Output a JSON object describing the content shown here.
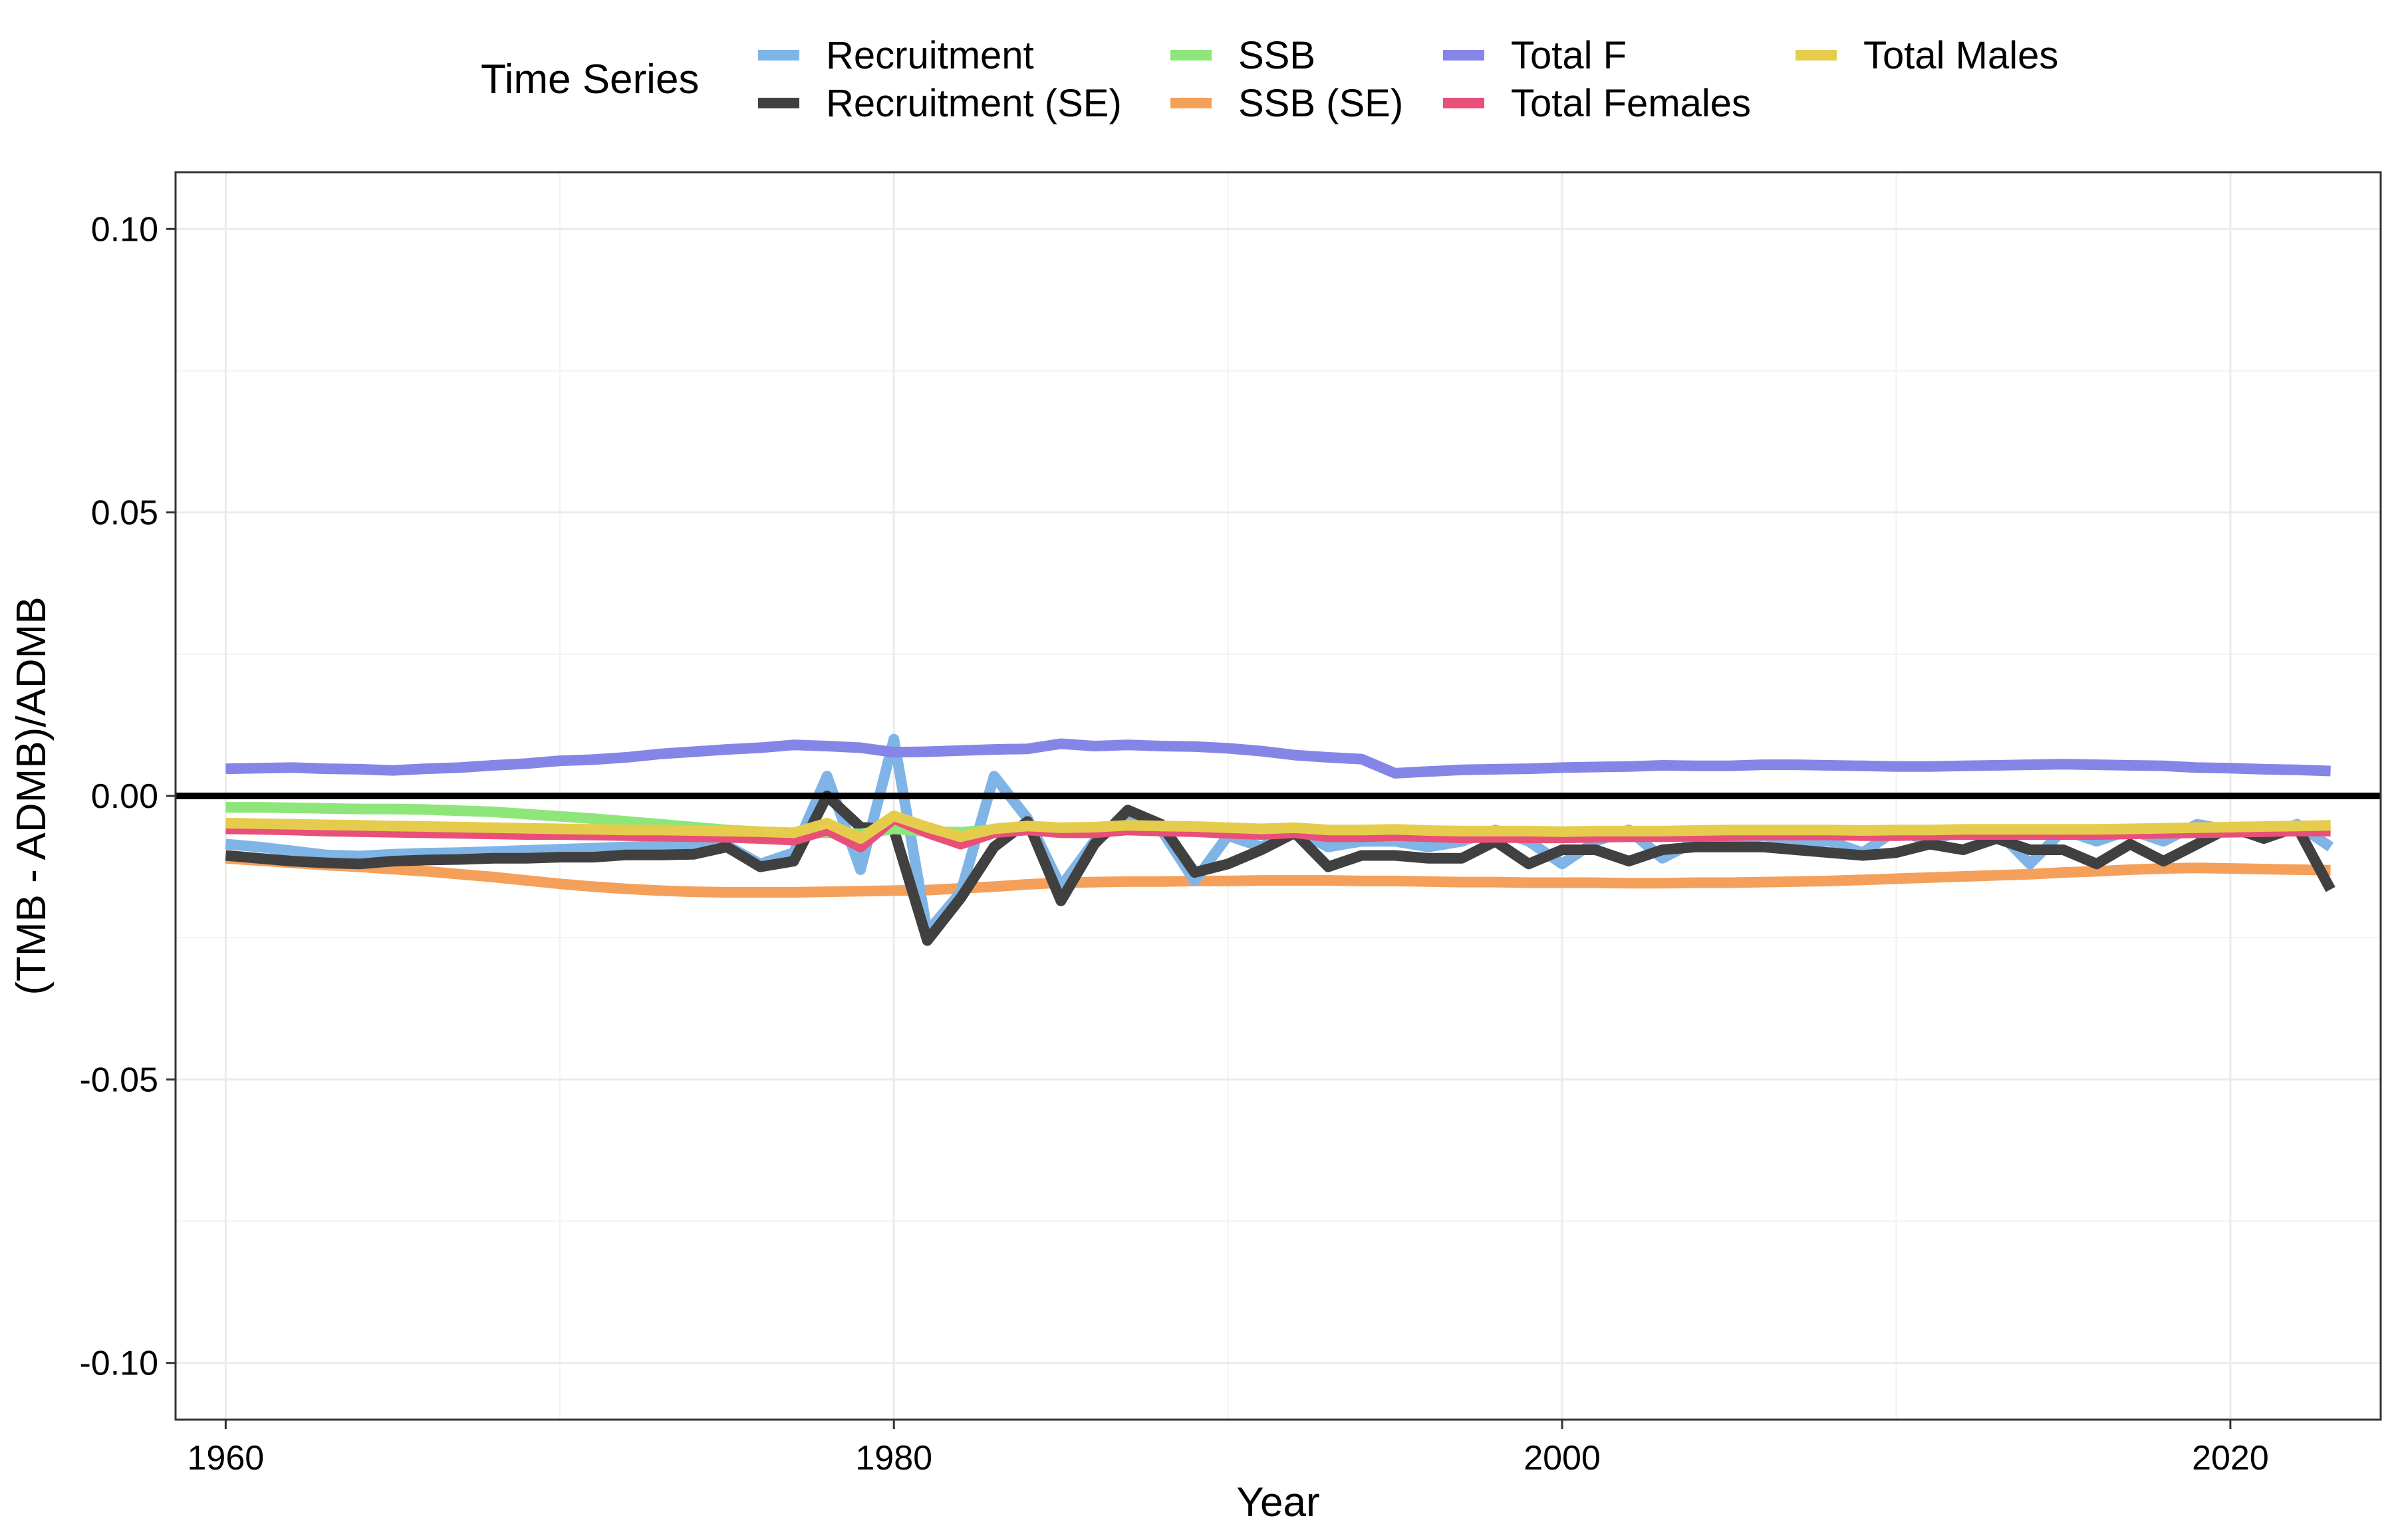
{
  "chart_data": {
    "type": "line",
    "title": "",
    "xlabel": "Year",
    "ylabel": "(TMB - ADMB)/ADMB",
    "xlim": [
      1958.5,
      2024.5
    ],
    "ylim": [
      -0.11,
      0.11
    ],
    "x_ticks": [
      1960,
      1980,
      2000,
      2020
    ],
    "x_tick_labels": [
      "1960",
      "1980",
      "2000",
      "2020"
    ],
    "y_ticks": [
      -0.1,
      -0.05,
      0.0,
      0.05,
      0.1
    ],
    "y_tick_labels": [
      "-0.10",
      "-0.05",
      "0.00",
      "0.05",
      "0.10"
    ],
    "grid": true,
    "reference_line": {
      "y": 0,
      "color": "#000000"
    },
    "legend": {
      "title": "Time Series",
      "position": "top",
      "columns": [
        [
          "Recruitment",
          "Recruitment (SE)"
        ],
        [
          "SSB",
          "SSB (SE)"
        ],
        [
          "Total F",
          "Total Females"
        ],
        [
          "Total Males"
        ]
      ]
    },
    "x": [
      1960,
      1961,
      1962,
      1963,
      1964,
      1965,
      1966,
      1967,
      1968,
      1969,
      1970,
      1971,
      1972,
      1973,
      1974,
      1975,
      1976,
      1977,
      1978,
      1979,
      1980,
      1981,
      1982,
      1983,
      1984,
      1985,
      1986,
      1987,
      1988,
      1989,
      1990,
      1991,
      1992,
      1993,
      1994,
      1995,
      1996,
      1997,
      1998,
      1999,
      2000,
      2001,
      2002,
      2003,
      2004,
      2005,
      2006,
      2007,
      2008,
      2009,
      2010,
      2011,
      2012,
      2013,
      2014,
      2015,
      2016,
      2017,
      2018,
      2019,
      2020,
      2021,
      2022,
      2023
    ],
    "series": [
      {
        "name": "Recruitment",
        "color": "#7fb4e6",
        "values": [
          -0.0085,
          -0.009,
          -0.0097,
          -0.0104,
          -0.0106,
          -0.0103,
          -0.0101,
          -0.01,
          -0.0098,
          -0.0096,
          -0.0094,
          -0.0092,
          -0.009,
          -0.0088,
          -0.0088,
          -0.0087,
          -0.012,
          -0.01,
          0.0035,
          -0.013,
          0.01,
          -0.024,
          -0.017,
          0.0035,
          -0.004,
          -0.016,
          -0.008,
          -0.004,
          -0.006,
          -0.015,
          -0.007,
          -0.009,
          -0.006,
          -0.009,
          -0.008,
          -0.008,
          -0.009,
          -0.008,
          -0.006,
          -0.008,
          -0.012,
          -0.008,
          -0.006,
          -0.011,
          -0.008,
          -0.008,
          -0.007,
          -0.008,
          -0.008,
          -0.01,
          -0.006,
          -0.008,
          -0.006,
          -0.006,
          -0.012,
          -0.006,
          -0.008,
          -0.006,
          -0.008,
          -0.005,
          -0.006,
          -0.007,
          -0.005,
          -0.009
        ]
      },
      {
        "name": "Recruitment (SE)",
        "color": "#404040",
        "values": [
          -0.0105,
          -0.011,
          -0.0115,
          -0.0118,
          -0.012,
          -0.0115,
          -0.0113,
          -0.0112,
          -0.011,
          -0.011,
          -0.0108,
          -0.0108,
          -0.0104,
          -0.0104,
          -0.0103,
          -0.009,
          -0.0125,
          -0.0115,
          0.0,
          -0.0055,
          -0.006,
          -0.0255,
          -0.018,
          -0.009,
          -0.0045,
          -0.0185,
          -0.0085,
          -0.0025,
          -0.005,
          -0.0135,
          -0.012,
          -0.0095,
          -0.0065,
          -0.0125,
          -0.0105,
          -0.0105,
          -0.011,
          -0.011,
          -0.008,
          -0.012,
          -0.0095,
          -0.0095,
          -0.0115,
          -0.0095,
          -0.009,
          -0.009,
          -0.009,
          -0.0095,
          -0.01,
          -0.0105,
          -0.01,
          -0.0085,
          -0.0095,
          -0.0075,
          -0.0095,
          -0.0095,
          -0.012,
          -0.0085,
          -0.0115,
          -0.0085,
          -0.0055,
          -0.0075,
          -0.0055,
          -0.0165
        ]
      },
      {
        "name": "SSB",
        "color": "#8ee57a",
        "values": [
          -0.002,
          -0.002,
          -0.0021,
          -0.0022,
          -0.0023,
          -0.0023,
          -0.0024,
          -0.0026,
          -0.0028,
          -0.0032,
          -0.0036,
          -0.004,
          -0.0045,
          -0.005,
          -0.0055,
          -0.006,
          -0.0063,
          -0.0066,
          -0.0065,
          -0.0067,
          -0.0058,
          -0.0063,
          -0.0064,
          -0.0059,
          -0.0058,
          -0.0057,
          -0.0056,
          -0.0055,
          -0.0056,
          -0.0057,
          -0.0058,
          -0.0059,
          -0.0058,
          -0.0061,
          -0.0061,
          -0.006,
          -0.0063,
          -0.0064,
          -0.0063,
          -0.0064,
          -0.0065,
          -0.0066,
          -0.0066,
          -0.0066,
          -0.0065,
          -0.0064,
          -0.0063,
          -0.0063,
          -0.0063,
          -0.0064,
          -0.0064,
          -0.0063,
          -0.0062,
          -0.0062,
          -0.0062,
          -0.0062,
          -0.0061,
          -0.006,
          -0.0059,
          -0.0058,
          -0.0057,
          -0.0056,
          -0.0055,
          -0.0055
        ]
      },
      {
        "name": "SSB (SE)",
        "color": "#f5a05a",
        "values": [
          -0.011,
          -0.0114,
          -0.0118,
          -0.0122,
          -0.0125,
          -0.0129,
          -0.0133,
          -0.0138,
          -0.0143,
          -0.0149,
          -0.0155,
          -0.016,
          -0.0164,
          -0.0167,
          -0.0169,
          -0.017,
          -0.017,
          -0.017,
          -0.0169,
          -0.0168,
          -0.0167,
          -0.0166,
          -0.0163,
          -0.016,
          -0.0156,
          -0.0153,
          -0.0152,
          -0.0151,
          -0.0151,
          -0.015,
          -0.015,
          -0.0149,
          -0.0149,
          -0.0149,
          -0.015,
          -0.015,
          -0.0151,
          -0.0152,
          -0.0152,
          -0.0153,
          -0.0153,
          -0.0153,
          -0.0154,
          -0.0154,
          -0.0153,
          -0.0153,
          -0.0152,
          -0.0151,
          -0.015,
          -0.0148,
          -0.0146,
          -0.0144,
          -0.0142,
          -0.014,
          -0.0138,
          -0.0135,
          -0.0133,
          -0.013,
          -0.0128,
          -0.0127,
          -0.0128,
          -0.0129,
          -0.013,
          -0.0131
        ]
      },
      {
        "name": "Total F",
        "color": "#8585e8",
        "values": [
          0.0048,
          0.0049,
          0.005,
          0.0048,
          0.0047,
          0.0045,
          0.0048,
          0.005,
          0.0054,
          0.0057,
          0.0062,
          0.0064,
          0.0068,
          0.0074,
          0.0078,
          0.0082,
          0.0085,
          0.009,
          0.0088,
          0.0085,
          0.0077,
          0.0078,
          0.008,
          0.0082,
          0.0083,
          0.0092,
          0.0088,
          0.009,
          0.0088,
          0.0087,
          0.0084,
          0.0079,
          0.0072,
          0.0068,
          0.0065,
          0.004,
          0.0043,
          0.0046,
          0.0047,
          0.0048,
          0.005,
          0.0051,
          0.0052,
          0.0054,
          0.0053,
          0.0053,
          0.0055,
          0.0055,
          0.0054,
          0.0053,
          0.0052,
          0.0052,
          0.0053,
          0.0054,
          0.0055,
          0.0056,
          0.0055,
          0.0054,
          0.0053,
          0.005,
          0.0049,
          0.0047,
          0.0046,
          0.0044
        ]
      },
      {
        "name": "Total Females",
        "color": "#e8507a",
        "values": [
          -0.0058,
          -0.0059,
          -0.006,
          -0.0062,
          -0.0063,
          -0.0064,
          -0.0065,
          -0.0066,
          -0.0067,
          -0.0068,
          -0.0068,
          -0.0069,
          -0.007,
          -0.0071,
          -0.0072,
          -0.0073,
          -0.0075,
          -0.0078,
          -0.006,
          -0.009,
          -0.004,
          -0.0065,
          -0.0085,
          -0.0065,
          -0.006,
          -0.0065,
          -0.0065,
          -0.006,
          -0.0062,
          -0.0063,
          -0.0066,
          -0.0068,
          -0.0065,
          -0.0072,
          -0.0072,
          -0.007,
          -0.0072,
          -0.0074,
          -0.0073,
          -0.0074,
          -0.0074,
          -0.0073,
          -0.0072,
          -0.0072,
          -0.0071,
          -0.007,
          -0.0069,
          -0.0069,
          -0.0069,
          -0.007,
          -0.007,
          -0.0069,
          -0.0068,
          -0.0068,
          -0.0068,
          -0.0068,
          -0.0068,
          -0.0067,
          -0.0066,
          -0.0065,
          -0.0064,
          -0.0063,
          -0.0062,
          -0.0062
        ]
      },
      {
        "name": "Total Males",
        "color": "#e6cc4d",
        "values": [
          -0.0048,
          -0.0049,
          -0.005,
          -0.0051,
          -0.0052,
          -0.0053,
          -0.0054,
          -0.0055,
          -0.0056,
          -0.0057,
          -0.0058,
          -0.0059,
          -0.006,
          -0.006,
          -0.0061,
          -0.0062,
          -0.0063,
          -0.0065,
          -0.0048,
          -0.0075,
          -0.0035,
          -0.0055,
          -0.0072,
          -0.0058,
          -0.0053,
          -0.0056,
          -0.0055,
          -0.0052,
          -0.0053,
          -0.0054,
          -0.0056,
          -0.0058,
          -0.0056,
          -0.006,
          -0.006,
          -0.0059,
          -0.0061,
          -0.0062,
          -0.0062,
          -0.0062,
          -0.0063,
          -0.0062,
          -0.0062,
          -0.0062,
          -0.0061,
          -0.006,
          -0.006,
          -0.006,
          -0.006,
          -0.0061,
          -0.006,
          -0.006,
          -0.0059,
          -0.0059,
          -0.0059,
          -0.0059,
          -0.0059,
          -0.0058,
          -0.0057,
          -0.0056,
          -0.0055,
          -0.0054,
          -0.0053,
          -0.0052
        ]
      }
    ]
  }
}
